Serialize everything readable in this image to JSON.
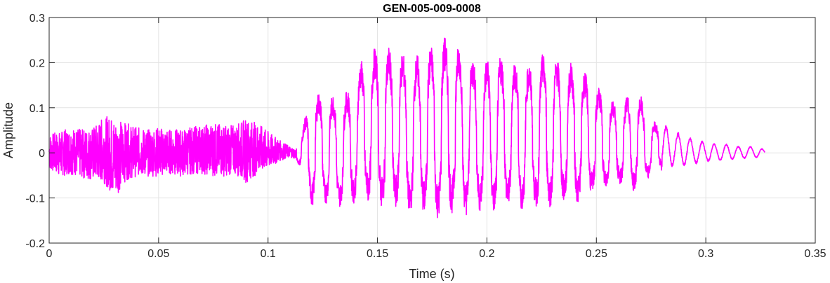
{
  "chart_data": {
    "type": "line",
    "title": "GEN-005-009-0008",
    "xlabel": "Time (s)",
    "ylabel": "Amplitude",
    "xlim": [
      0,
      0.35
    ],
    "ylim": [
      -0.2,
      0.3
    ],
    "x_ticks": [
      0,
      0.05,
      0.1,
      0.15,
      0.2,
      0.25,
      0.3,
      0.35
    ],
    "x_tick_labels": [
      "0",
      "0.05",
      "0.1",
      "0.15",
      "0.2",
      "0.25",
      "0.3",
      "0.35"
    ],
    "y_ticks": [
      -0.2,
      -0.1,
      0,
      0.1,
      0.2,
      0.3
    ],
    "y_tick_labels": [
      "-0.2",
      "-0.1",
      "0",
      "0.1",
      "0.2",
      "0.3"
    ],
    "grid": true,
    "line_color": "#ff00ff",
    "series": [
      {
        "x": [
          0,
          0.005,
          0.01,
          0.015,
          0.02,
          0.025,
          0.03,
          0.035,
          0.04,
          0.045,
          0.05,
          0.055,
          0.06,
          0.065,
          0.07,
          0.075,
          0.08,
          0.085,
          0.09,
          0.095,
          0.1,
          0.105,
          0.11,
          0.113,
          0.116,
          0.12,
          0.125,
          0.13,
          0.135,
          0.14,
          0.145,
          0.15,
          0.155,
          0.16,
          0.165,
          0.17,
          0.175,
          0.18,
          0.185,
          0.19,
          0.195,
          0.2,
          0.205,
          0.21,
          0.215,
          0.22,
          0.225,
          0.23,
          0.235,
          0.24,
          0.245,
          0.25,
          0.255,
          0.26,
          0.265,
          0.27,
          0.275,
          0.28,
          0.285,
          0.29,
          0.295,
          0.3,
          0.305,
          0.31,
          0.315,
          0.32,
          0.325,
          0.327
        ],
        "y_max": [
          0.045,
          0.05,
          0.06,
          0.055,
          0.06,
          0.085,
          0.085,
          0.07,
          0.06,
          0.055,
          0.06,
          0.055,
          0.055,
          0.06,
          0.065,
          0.07,
          0.065,
          0.065,
          0.08,
          0.07,
          0.05,
          0.03,
          0.015,
          0.01,
          0.06,
          0.14,
          0.13,
          0.13,
          0.13,
          0.18,
          0.23,
          0.235,
          0.235,
          0.235,
          0.2,
          0.23,
          0.24,
          0.26,
          0.25,
          0.23,
          0.21,
          0.21,
          0.22,
          0.21,
          0.2,
          0.2,
          0.22,
          0.22,
          0.2,
          0.2,
          0.18,
          0.15,
          0.13,
          0.11,
          0.13,
          0.13,
          0.07,
          0.07,
          0.05,
          0.04,
          0.03,
          0.025,
          0.02,
          0.02,
          0.015,
          0.015,
          0.012,
          0.005
        ],
        "y_min": [
          -0.04,
          -0.055,
          -0.05,
          -0.06,
          -0.065,
          -0.07,
          -0.105,
          -0.065,
          -0.055,
          -0.055,
          -0.055,
          -0.05,
          -0.055,
          -0.05,
          -0.05,
          -0.055,
          -0.055,
          -0.05,
          -0.07,
          -0.05,
          -0.04,
          -0.02,
          -0.01,
          -0.015,
          -0.05,
          -0.12,
          -0.11,
          -0.12,
          -0.12,
          -0.11,
          -0.11,
          -0.12,
          -0.13,
          -0.12,
          -0.14,
          -0.135,
          -0.14,
          -0.155,
          -0.13,
          -0.14,
          -0.13,
          -0.13,
          -0.135,
          -0.12,
          -0.13,
          -0.12,
          -0.125,
          -0.12,
          -0.11,
          -0.12,
          -0.1,
          -0.09,
          -0.08,
          -0.07,
          -0.09,
          -0.08,
          -0.05,
          -0.04,
          -0.03,
          -0.03,
          -0.025,
          -0.02,
          -0.018,
          -0.016,
          -0.014,
          -0.012,
          -0.01,
          -0.005
        ]
      }
    ]
  }
}
